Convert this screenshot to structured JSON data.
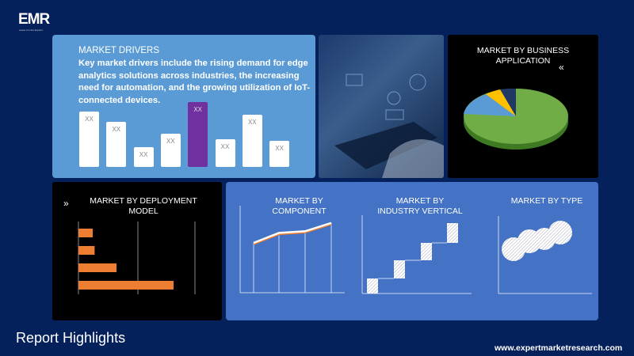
{
  "logo": {
    "text": "EMR",
    "tagline": "Leave it to the Experts"
  },
  "drivers": {
    "title": "MARKET DRIVERS",
    "text": "Key market drivers  include the rising demand for edge analytics solutions across industries, the increasing need for automation, and the growing utilization of IoT-connected devices.",
    "bars": [
      {
        "label": "XX",
        "value": 70,
        "highlight": false
      },
      {
        "label": "XX",
        "value": 57,
        "highlight": false
      },
      {
        "label": "XX",
        "value": 25,
        "highlight": false
      },
      {
        "label": "XX",
        "value": 42,
        "highlight": false
      },
      {
        "label": "XX",
        "value": 82,
        "highlight": true
      },
      {
        "label": "XX",
        "value": 35,
        "highlight": false
      },
      {
        "label": "XX",
        "value": 66,
        "highlight": false
      },
      {
        "label": "XX",
        "value": 33,
        "highlight": false
      }
    ],
    "highlight_color": "#7030a0"
  },
  "business": {
    "title": "MARKET BY BUSINESS APPLICATION",
    "icon": "double-chevron-left-icon"
  },
  "deployment": {
    "title": "MARKET BY DEPLOYMENT MODEL",
    "icon": "double-chevron-right-icon",
    "values": [
      15,
      17,
      40,
      100
    ],
    "bar_color": "#ed7d31"
  },
  "component": {
    "title": "MARKET BY COMPONENT",
    "values": [
      60,
      72,
      74,
      84
    ]
  },
  "industry": {
    "title": "MARKET BY INDUSTRY VERTICAL"
  },
  "type": {
    "title": "MARKET BY TYPE"
  },
  "footer": {
    "heading": "Report Highlights",
    "url": "www.expertmarketresearch.com"
  },
  "colors": {
    "background": "#05215b",
    "drivers_panel": "#5b9bd5",
    "lower_panel": "#4472c4"
  }
}
